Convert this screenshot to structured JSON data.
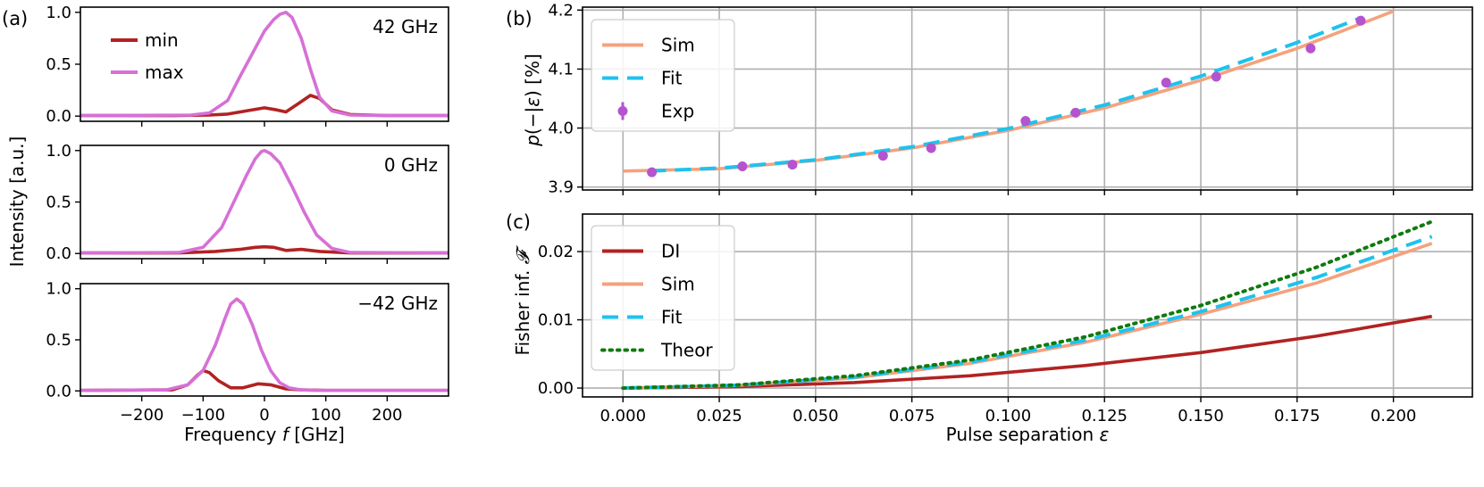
{
  "colors": {
    "min": "#b22222",
    "max": "#d670d6",
    "di": "#b22222",
    "sim": "#f4a27e",
    "fit": "#1ec2ee",
    "exp": "#b554cf",
    "theor": "#107a10",
    "grid": "#b0b0b0"
  },
  "chart_data": [
    {
      "id": "a1",
      "panel": "(a)",
      "type": "line",
      "annotation": "42 GHz",
      "xlim": [
        -300,
        300
      ],
      "ylim": [
        -0.05,
        1.05
      ],
      "yticks": [
        0.0,
        0.5,
        1.0
      ],
      "ytick_labels": [
        "0.0",
        "0.5",
        "1.0"
      ],
      "xticks": [
        -200,
        -100,
        0,
        100,
        200
      ],
      "legend": {
        "position": "upper-left",
        "entries": [
          "min",
          "max"
        ]
      },
      "series": [
        {
          "name": "min",
          "color_key": "min",
          "dash": "",
          "x": [
            -300,
            -150,
            -90,
            -60,
            -30,
            0,
            20,
            35,
            55,
            75,
            90,
            110,
            140,
            200,
            300
          ],
          "y": [
            0.005,
            0.005,
            0.01,
            0.02,
            0.05,
            0.08,
            0.06,
            0.04,
            0.12,
            0.2,
            0.17,
            0.06,
            0.015,
            0.005,
            0.005
          ]
        },
        {
          "name": "max",
          "color_key": "max",
          "dash": "",
          "x": [
            -300,
            -120,
            -90,
            -60,
            -40,
            -20,
            0,
            15,
            25,
            35,
            45,
            60,
            75,
            90,
            110,
            140,
            200,
            300
          ],
          "y": [
            0.005,
            0.01,
            0.03,
            0.15,
            0.38,
            0.6,
            0.82,
            0.93,
            0.98,
            1.0,
            0.95,
            0.75,
            0.45,
            0.18,
            0.05,
            0.01,
            0.005,
            0.005
          ]
        }
      ]
    },
    {
      "id": "a2",
      "type": "line",
      "annotation": "0 GHz",
      "xlim": [
        -300,
        300
      ],
      "ylim": [
        -0.05,
        1.05
      ],
      "yticks": [
        0.0,
        0.5,
        1.0
      ],
      "ytick_labels": [
        "0.0",
        "0.5",
        "1.0"
      ],
      "xticks": [
        -200,
        -100,
        0,
        100,
        200
      ],
      "series": [
        {
          "name": "min",
          "color_key": "min",
          "dash": "",
          "x": [
            -300,
            -140,
            -80,
            -40,
            -15,
            0,
            15,
            35,
            60,
            90,
            140,
            300
          ],
          "y": [
            0.005,
            0.005,
            0.02,
            0.04,
            0.06,
            0.065,
            0.06,
            0.03,
            0.04,
            0.02,
            0.005,
            0.005
          ]
        },
        {
          "name": "max",
          "color_key": "max",
          "dash": "",
          "x": [
            -300,
            -140,
            -100,
            -70,
            -50,
            -30,
            -15,
            -5,
            0,
            10,
            25,
            45,
            65,
            85,
            110,
            140,
            300
          ],
          "y": [
            0.005,
            0.01,
            0.06,
            0.25,
            0.5,
            0.75,
            0.92,
            0.99,
            1.0,
            0.97,
            0.88,
            0.65,
            0.4,
            0.18,
            0.05,
            0.01,
            0.005
          ]
        }
      ]
    },
    {
      "id": "a3",
      "type": "line",
      "annotation": "−42 GHz",
      "xlim": [
        -300,
        300
      ],
      "ylim": [
        -0.05,
        1.05
      ],
      "yticks": [
        0.0,
        0.5,
        1.0
      ],
      "ytick_labels": [
        "0.0",
        "0.5",
        "1.0"
      ],
      "xticks": [
        -200,
        -100,
        0,
        100,
        200
      ],
      "xtick_labels": [
        "−200",
        "−100",
        "0",
        "100",
        "200"
      ],
      "xlabel": "Frequency f [GHz]",
      "series": [
        {
          "name": "min",
          "color_key": "min",
          "dash": "",
          "x": [
            -300,
            -150,
            -125,
            -110,
            -100,
            -90,
            -75,
            -55,
            -35,
            -10,
            10,
            35,
            60,
            100,
            300
          ],
          "y": [
            0.005,
            0.01,
            0.06,
            0.15,
            0.2,
            0.18,
            0.1,
            0.03,
            0.03,
            0.07,
            0.06,
            0.02,
            0.01,
            0.005,
            0.005
          ]
        },
        {
          "name": "max",
          "color_key": "max",
          "dash": "",
          "x": [
            -300,
            -160,
            -125,
            -100,
            -80,
            -65,
            -55,
            -45,
            -35,
            -20,
            -5,
            10,
            25,
            40,
            60,
            90,
            300
          ],
          "y": [
            0.005,
            0.01,
            0.06,
            0.2,
            0.45,
            0.7,
            0.85,
            0.9,
            0.85,
            0.65,
            0.4,
            0.2,
            0.08,
            0.03,
            0.01,
            0.005,
            0.005
          ]
        }
      ]
    },
    {
      "id": "b",
      "panel": "(b)",
      "type": "line",
      "ylabel": "p(−|ε) [%]",
      "xlim": [
        -0.0105,
        0.2205
      ],
      "ylim": [
        3.895,
        4.205
      ],
      "yticks": [
        3.9,
        4.0,
        4.1,
        4.2
      ],
      "ytick_labels": [
        "3.9",
        "4.0",
        "4.1",
        "4.2"
      ],
      "xticks": [
        0,
        0.025,
        0.05,
        0.075,
        0.1,
        0.125,
        0.15,
        0.175,
        0.2
      ],
      "legend": {
        "position": "upper-left",
        "entries": [
          "Sim",
          "Fit",
          "Exp"
        ]
      },
      "series": [
        {
          "name": "Sim",
          "color_key": "sim",
          "dash": "",
          "x": [
            0,
            0.025,
            0.05,
            0.075,
            0.1,
            0.125,
            0.15,
            0.175,
            0.2
          ],
          "y": [
            3.927,
            3.931,
            3.945,
            3.966,
            3.996,
            4.034,
            4.081,
            4.135,
            4.198
          ]
        },
        {
          "name": "Fit",
          "color_key": "fit",
          "dash": "18 10",
          "x": [
            0.007,
            0.025,
            0.05,
            0.075,
            0.1,
            0.125,
            0.15,
            0.175,
            0.192
          ],
          "y": [
            3.927,
            3.932,
            3.946,
            3.968,
            3.999,
            4.039,
            4.088,
            4.145,
            4.188
          ]
        }
      ],
      "points": {
        "name": "Exp",
        "color_key": "exp",
        "x": [
          0.0075,
          0.031,
          0.044,
          0.0675,
          0.08,
          0.1045,
          0.1175,
          0.141,
          0.154,
          0.1785,
          0.1915
        ],
        "y": [
          3.925,
          3.935,
          3.938,
          3.953,
          3.966,
          4.012,
          4.026,
          4.077,
          4.087,
          4.135,
          4.182
        ],
        "err": [
          0.008,
          0.008,
          0.008,
          0.008,
          0.008,
          0.008,
          0.008,
          0.008,
          0.008,
          0.008,
          0.008
        ]
      }
    },
    {
      "id": "c",
      "panel": "(c)",
      "type": "line",
      "ylabel": "Fisher inf. 𝓕",
      "xlabel": "Pulse separation ε",
      "xlim": [
        -0.0105,
        0.2205
      ],
      "ylim": [
        -0.0013,
        0.0255
      ],
      "yticks": [
        0,
        0.01,
        0.02
      ],
      "ytick_labels": [
        "0.00",
        "0.01",
        "0.02"
      ],
      "xticks": [
        0,
        0.025,
        0.05,
        0.075,
        0.1,
        0.125,
        0.15,
        0.175,
        0.2
      ],
      "xtick_labels": [
        "0.000",
        "0.025",
        "0.050",
        "0.075",
        "0.100",
        "0.125",
        "0.150",
        "0.175",
        "0.200"
      ],
      "legend": {
        "position": "upper-left",
        "entries": [
          "DI",
          "Sim",
          "Fit",
          "Theor"
        ]
      },
      "series": [
        {
          "name": "DI",
          "color_key": "di",
          "dash": "",
          "x": [
            0,
            0.03,
            0.06,
            0.09,
            0.12,
            0.15,
            0.18,
            0.21
          ],
          "y": [
            0,
            0.0002,
            0.0008,
            0.0018,
            0.0033,
            0.0052,
            0.0076,
            0.0105
          ]
        },
        {
          "name": "Sim",
          "color_key": "sim",
          "dash": "",
          "x": [
            0,
            0.03,
            0.06,
            0.09,
            0.12,
            0.15,
            0.18,
            0.21
          ],
          "y": [
            0,
            0.0004,
            0.0015,
            0.0036,
            0.0067,
            0.0108,
            0.0154,
            0.0212
          ]
        },
        {
          "name": "Fit",
          "color_key": "fit",
          "dash": "18 10",
          "x": [
            0,
            0.03,
            0.06,
            0.09,
            0.12,
            0.15,
            0.18,
            0.21
          ],
          "y": [
            0,
            0.0004,
            0.0016,
            0.0038,
            0.007,
            0.0112,
            0.0162,
            0.0222
          ]
        },
        {
          "name": "Theor",
          "color_key": "theor",
          "dash": "2.5 6",
          "x": [
            0,
            0.03,
            0.06,
            0.09,
            0.12,
            0.15,
            0.18,
            0.21
          ],
          "y": [
            0,
            0.00045,
            0.0018,
            0.0041,
            0.0075,
            0.0121,
            0.0177,
            0.0244
          ]
        }
      ]
    }
  ],
  "labels": {
    "a_ylabel": "Intensity [a.u.]",
    "a_xlabel_pre": "Frequency ",
    "a_xlabel_var": "f",
    "a_xlabel_post": " [GHz]",
    "bc_xlabel_pre": "Pulse separation ",
    "bc_xlabel_var": "ε",
    "b_ylabel_var": "p",
    "b_ylabel_mid": "(−|",
    "b_ylabel_eps": "ε",
    "b_ylabel_post": ") [%]",
    "c_ylabel_pre": "Fisher inf. ",
    "c_ylabel_var": "𝓕"
  }
}
